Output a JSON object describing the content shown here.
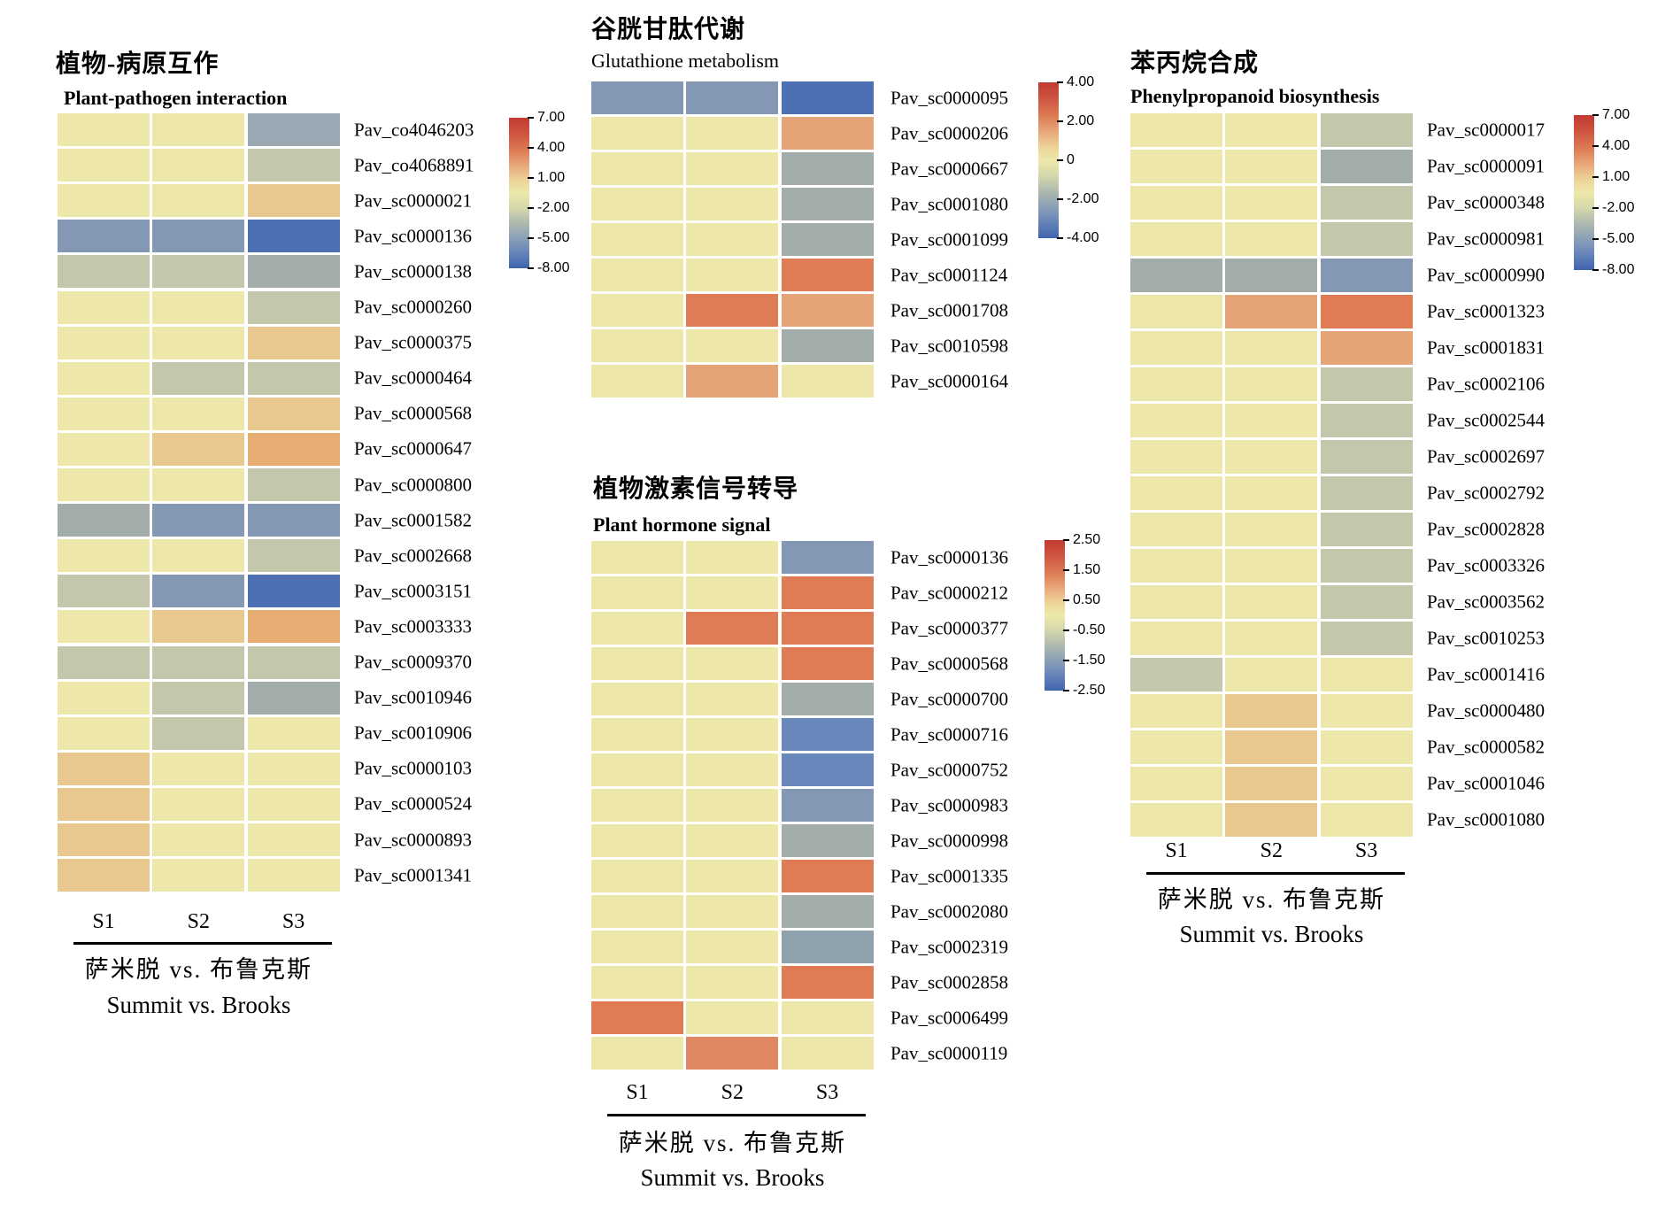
{
  "palette": {
    "y": "#EDE8AA",
    "g": "#C5C7AC",
    "n": "#A2ADAB",
    "d": "#8FA1AC",
    "s": "#9AA8B3",
    "b": "#8497B5",
    "M": "#6A87BB",
    "B": "#4D70B5",
    "t": "#E9C88F",
    "T": "#E6AC71",
    "o": "#E5A478",
    "p": "#E08763",
    "r": "#DF7C55"
  },
  "chart_data": {
    "type": "heatmap",
    "columns": [
      "S1",
      "S2",
      "S3"
    ],
    "colorbar_position": "right",
    "colormap": "red-yellow-blue",
    "panels": [
      {
        "id": "plant-pathogen",
        "title_cn": "植物-病原互作",
        "title_en": "Plant-pathogen interaction",
        "genes": [
          "Pav_co4046203",
          "Pav_co4068891",
          "Pav_sc0000021",
          "Pav_sc0000136",
          "Pav_sc0000138",
          "Pav_sc0000260",
          "Pav_sc0000375",
          "Pav_sc0000464",
          "Pav_sc0000568",
          "Pav_sc0000647",
          "Pav_sc0000800",
          "Pav_sc0001582",
          "Pav_sc0002668",
          "Pav_sc0003151",
          "Pav_sc0003333",
          "Pav_sc0009370",
          "Pav_sc0010946",
          "Pav_sc0010906",
          "Pav_sc0000103",
          "Pav_sc0000524",
          "Pav_sc0000893",
          "Pav_sc0001341"
        ],
        "cells": [
          [
            "y",
            "y",
            "s"
          ],
          [
            "y",
            "y",
            "g"
          ],
          [
            "y",
            "y",
            "t"
          ],
          [
            "b",
            "b",
            "B"
          ],
          [
            "g",
            "g",
            "n"
          ],
          [
            "y",
            "y",
            "g"
          ],
          [
            "y",
            "y",
            "t"
          ],
          [
            "y",
            "g",
            "g"
          ],
          [
            "y",
            "y",
            "t"
          ],
          [
            "y",
            "t",
            "T"
          ],
          [
            "y",
            "y",
            "g"
          ],
          [
            "n",
            "b",
            "b"
          ],
          [
            "y",
            "y",
            "g"
          ],
          [
            "g",
            "b",
            "B"
          ],
          [
            "y",
            "t",
            "T"
          ],
          [
            "g",
            "g",
            "g"
          ],
          [
            "y",
            "g",
            "n"
          ],
          [
            "y",
            "g",
            "y"
          ],
          [
            "t",
            "y",
            "y"
          ],
          [
            "t",
            "y",
            "y"
          ],
          [
            "t",
            "y",
            "y"
          ],
          [
            "t",
            "y",
            "y"
          ]
        ],
        "value_range": [
          -8,
          7
        ],
        "approx_value_map": {
          "y": 0.5,
          "g": -1.5,
          "n": -2.5,
          "s": -3.5,
          "b": -5,
          "B": -7.5,
          "t": 2.5,
          "T": 3.5
        },
        "colorbar_ticks": [
          "7.00",
          "4.00",
          "1.00",
          "-2.00",
          "-5.00",
          "-8.00"
        ],
        "footer": {
          "columns": [
            "S1",
            "S2",
            "S3"
          ],
          "label_cn": "萨米脱  vs. 布鲁克斯",
          "label_en": "Summit  vs. Brooks"
        }
      },
      {
        "id": "glutathione",
        "title_cn": "谷胱甘肽代谢",
        "title_en": "Glutathione metabolism",
        "genes": [
          "Pav_sc0000095",
          "Pav_sc0000206",
          "Pav_sc0000667",
          "Pav_sc0001080",
          "Pav_sc0001099",
          "Pav_sc0001124",
          "Pav_sc0001708",
          "Pav_sc0010598",
          "Pav_sc0000164"
        ],
        "cells": [
          [
            "b",
            "b",
            "B"
          ],
          [
            "y",
            "y",
            "o"
          ],
          [
            "y",
            "y",
            "n"
          ],
          [
            "y",
            "y",
            "n"
          ],
          [
            "y",
            "y",
            "n"
          ],
          [
            "y",
            "y",
            "r"
          ],
          [
            "y",
            "r",
            "o"
          ],
          [
            "y",
            "y",
            "n"
          ],
          [
            "y",
            "o",
            "y"
          ]
        ],
        "value_range": [
          -4,
          4
        ],
        "approx_value_map": {
          "y": 0.3,
          "n": -1.3,
          "b": -2.6,
          "B": -3.8,
          "o": 1.7,
          "r": 2.7
        },
        "colorbar_ticks": [
          "4.00",
          "2.00",
          "0",
          "-2.00",
          "-4.00"
        ],
        "footer": null
      },
      {
        "id": "plant-hormone",
        "title_cn": "植物激素信号转导",
        "title_en": "Plant hormone signal",
        "genes": [
          "Pav_sc0000136",
          "Pav_sc0000212",
          "Pav_sc0000377",
          "Pav_sc0000568",
          "Pav_sc0000700",
          "Pav_sc0000716",
          "Pav_sc0000752",
          "Pav_sc0000983",
          "Pav_sc0000998",
          "Pav_sc0001335",
          "Pav_sc0002080",
          "Pav_sc0002319",
          "Pav_sc0002858",
          "Pav_sc0006499",
          "Pav_sc0000119"
        ],
        "cells": [
          [
            "y",
            "y",
            "b"
          ],
          [
            "y",
            "y",
            "r"
          ],
          [
            "y",
            "r",
            "r"
          ],
          [
            "y",
            "y",
            "r"
          ],
          [
            "y",
            "y",
            "n"
          ],
          [
            "y",
            "y",
            "M"
          ],
          [
            "y",
            "y",
            "M"
          ],
          [
            "y",
            "y",
            "b"
          ],
          [
            "y",
            "y",
            "n"
          ],
          [
            "y",
            "y",
            "r"
          ],
          [
            "y",
            "y",
            "n"
          ],
          [
            "y",
            "y",
            "d"
          ],
          [
            "y",
            "y",
            "r"
          ],
          [
            "r",
            "y",
            "y"
          ],
          [
            "y",
            "p",
            "y"
          ]
        ],
        "value_range": [
          -2.5,
          2.5
        ],
        "approx_value_map": {
          "y": 0.2,
          "n": -0.8,
          "d": -1.0,
          "b": -1.3,
          "M": -1.8,
          "p": 1.7,
          "r": 2.0
        },
        "colorbar_ticks": [
          "2.50",
          "1.50",
          "0.50",
          "-0.50",
          "-1.50",
          "-2.50"
        ],
        "footer": {
          "columns": [
            "S1",
            "S2",
            "S3"
          ],
          "label_cn": "萨米脱  vs. 布鲁克斯",
          "label_en": "Summit  vs. Brooks"
        }
      },
      {
        "id": "phenylpropanoid",
        "title_cn": "苯丙烷合成",
        "title_en": "Phenylpropanoid biosynthesis",
        "genes": [
          "Pav_sc0000017",
          "Pav_sc0000091",
          "Pav_sc0000348",
          "Pav_sc0000981",
          "Pav_sc0000990",
          "Pav_sc0001323",
          "Pav_sc0001831",
          "Pav_sc0002106",
          "Pav_sc0002544",
          "Pav_sc0002697",
          "Pav_sc0002792",
          "Pav_sc0002828",
          "Pav_sc0003326",
          "Pav_sc0003562",
          "Pav_sc0010253",
          "Pav_sc0001416",
          "Pav_sc0000480",
          "Pav_sc0000582",
          "Pav_sc0001046",
          "Pav_sc0001080"
        ],
        "cells": [
          [
            "y",
            "y",
            "g"
          ],
          [
            "y",
            "y",
            "n"
          ],
          [
            "y",
            "y",
            "g"
          ],
          [
            "y",
            "y",
            "g"
          ],
          [
            "n",
            "n",
            "b"
          ],
          [
            "y",
            "o",
            "r"
          ],
          [
            "y",
            "y",
            "o"
          ],
          [
            "y",
            "y",
            "g"
          ],
          [
            "y",
            "y",
            "g"
          ],
          [
            "y",
            "y",
            "g"
          ],
          [
            "y",
            "y",
            "g"
          ],
          [
            "y",
            "y",
            "g"
          ],
          [
            "y",
            "y",
            "g"
          ],
          [
            "y",
            "y",
            "g"
          ],
          [
            "y",
            "y",
            "g"
          ],
          [
            "g",
            "y",
            "y"
          ],
          [
            "y",
            "t",
            "y"
          ],
          [
            "y",
            "t",
            "y"
          ],
          [
            "y",
            "t",
            "y"
          ],
          [
            "y",
            "t",
            "y"
          ]
        ],
        "value_range": [
          -8,
          7
        ],
        "approx_value_map": {
          "y": 0.5,
          "g": -1.5,
          "n": -2.5,
          "b": -5,
          "t": 2.5,
          "o": 3.5,
          "r": 5
        },
        "colorbar_ticks": [
          "7.00",
          "4.00",
          "1.00",
          "-2.00",
          "-5.00",
          "-8.00"
        ],
        "footer": {
          "columns": [
            "S1",
            "S2",
            "S3"
          ],
          "label_cn": "萨米脱  vs. 布鲁克斯",
          "label_en": "Summit  vs. Brooks"
        }
      }
    ]
  }
}
